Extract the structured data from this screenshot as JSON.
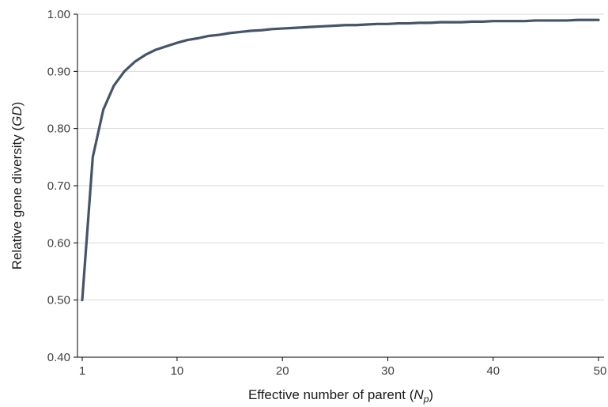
{
  "chart_data": {
    "type": "line",
    "xlabel": "Effective number of parent (",
    "xlabel_symbol": "N",
    "xlabel_sub": "p",
    "xlabel_end": ")",
    "ylabel": "Relative gene diversity (",
    "ylabel_symbol": "GD",
    "ylabel_end": ")",
    "xlim": [
      1,
      50
    ],
    "ylim": [
      0.4,
      1.0
    ],
    "xticks": [
      1,
      10,
      20,
      30,
      40,
      50
    ],
    "xtick_labels": [
      "1",
      "10",
      "20",
      "30",
      "40",
      "50"
    ],
    "yticks": [
      0.4,
      0.5,
      0.6,
      0.7,
      0.8,
      0.9,
      1.0
    ],
    "ytick_labels": [
      "0.40",
      "0.50",
      "0.60",
      "0.70",
      "0.80",
      "0.90",
      "1.00"
    ],
    "grid": "horizontal",
    "line_color": "#44546a",
    "grid_color": "#d9d9d9",
    "series": [
      {
        "x": [
          1,
          2,
          3,
          4,
          5,
          6,
          7,
          8,
          9,
          10,
          11,
          12,
          13,
          14,
          15,
          16,
          17,
          18,
          19,
          20,
          21,
          22,
          23,
          24,
          25,
          26,
          27,
          28,
          29,
          30,
          31,
          32,
          33,
          34,
          35,
          36,
          37,
          38,
          39,
          40,
          41,
          42,
          43,
          44,
          45,
          46,
          47,
          48,
          49,
          50
        ],
        "values": [
          0.5,
          0.75,
          0.833,
          0.875,
          0.9,
          0.917,
          0.929,
          0.938,
          0.944,
          0.95,
          0.955,
          0.958,
          0.962,
          0.964,
          0.967,
          0.969,
          0.971,
          0.972,
          0.974,
          0.975,
          0.976,
          0.977,
          0.978,
          0.979,
          0.98,
          0.981,
          0.981,
          0.982,
          0.983,
          0.983,
          0.984,
          0.984,
          0.985,
          0.985,
          0.986,
          0.986,
          0.986,
          0.987,
          0.987,
          0.988,
          0.988,
          0.988,
          0.988,
          0.989,
          0.989,
          0.989,
          0.989,
          0.99,
          0.99,
          0.99
        ]
      }
    ]
  }
}
